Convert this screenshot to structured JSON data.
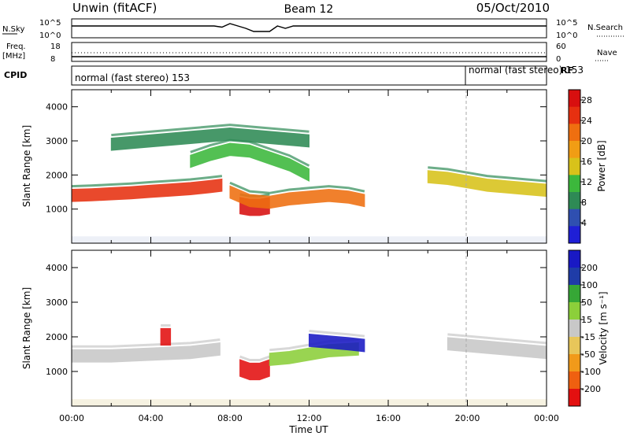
{
  "header": {
    "station": "Unwin (fitACF)",
    "beam": "Beam 12",
    "date": "05/Oct/2010"
  },
  "top_panels": {
    "nsky": {
      "label": "N.Sky",
      "ticks": [
        "10^5",
        "10^0"
      ],
      "right_label": "N.Search",
      "right_ticks": [
        "10^5",
        "10^0"
      ]
    },
    "freq": {
      "label_line1": "Freq.",
      "label_line2": "[MHz]",
      "ticks": [
        "18",
        "8"
      ],
      "right_label": "Nave",
      "right_ticks": [
        "60",
        "0"
      ]
    },
    "cpid": {
      "label": "CPID",
      "right_label": "RF",
      "modes": [
        "normal (fast stereo) 153",
        "normal (fast stereo) 153"
      ]
    }
  },
  "colors": {
    "power": [
      "#1f1fd6",
      "#2f4fb0",
      "#2e8a55",
      "#3cb83c",
      "#d8c21a",
      "#f19d14",
      "#ef6f10",
      "#e63010",
      "#d80f0f"
    ],
    "velocity": [
      "#1919c4",
      "#1f3ca8",
      "#36a736",
      "#8ccf3a",
      "#c8c8c8",
      "#e8c65a",
      "#f19a1a",
      "#ef6010",
      "#e31010"
    ],
    "ground": "#c8c8c8"
  },
  "chart_data": [
    {
      "type": "heatmap",
      "name": "power",
      "xlabel": "",
      "ylabel": "Slant Range [km]",
      "xlim": [
        0,
        24
      ],
      "ylim": [
        0,
        4500
      ],
      "yticks": [
        "1000",
        "2000",
        "3000",
        "4000"
      ],
      "colorbar": {
        "label": "Power [dB]",
        "ticks": [
          "4",
          "8",
          "12",
          "16",
          "20",
          "24",
          "28"
        ],
        "range": [
          0,
          30
        ]
      },
      "series": [
        {
          "x": [
            0,
            1,
            2,
            3,
            4,
            5,
            6,
            7,
            7.6
          ],
          "y": [
            1400,
            1420,
            1450,
            1480,
            1520,
            1560,
            1600,
            1660,
            1700
          ],
          "value": 24
        },
        {
          "x": [
            8.5,
            9,
            9.5,
            10
          ],
          "y": [
            1100,
            1050,
            1050,
            1100
          ],
          "value": 28
        },
        {
          "x": [
            8,
            9,
            10,
            11,
            12,
            13,
            14,
            14.8
          ],
          "y": [
            1500,
            1250,
            1200,
            1300,
            1350,
            1400,
            1350,
            1250
          ],
          "value": 20
        },
        {
          "x": [
            6,
            7,
            8,
            9,
            10,
            11,
            12
          ],
          "y": [
            2400,
            2600,
            2750,
            2700,
            2500,
            2300,
            2000
          ],
          "value": 12
        },
        {
          "x": [
            2,
            4,
            6,
            8,
            10,
            12
          ],
          "y": [
            2900,
            3000,
            3100,
            3200,
            3100,
            3000
          ],
          "value": 8
        },
        {
          "x": [
            18,
            19,
            20,
            21,
            22,
            23,
            24
          ],
          "y": [
            1950,
            1900,
            1800,
            1700,
            1650,
            1600,
            1550
          ],
          "value": 14
        }
      ]
    },
    {
      "type": "heatmap",
      "name": "velocity",
      "xlabel": "Time UT",
      "ylabel": "Slant Range [km]",
      "xlim": [
        0,
        24
      ],
      "ylim": [
        0,
        4500
      ],
      "xticks": [
        "00:00",
        "04:00",
        "08:00",
        "12:00",
        "16:00",
        "20:00",
        "00:00"
      ],
      "yticks": [
        "1000",
        "2000",
        "3000",
        "4000"
      ],
      "colorbar": {
        "label": "Velocity [m s⁻¹]",
        "ticks": [
          "200",
          "100",
          "50",
          "15",
          "-15",
          "-50",
          "-100",
          "-200"
        ],
        "range": [
          -250,
          250
        ]
      },
      "series": [
        {
          "x": [
            0,
            2,
            4,
            6,
            7.5
          ],
          "y": [
            1450,
            1450,
            1500,
            1550,
            1650
          ],
          "value": 0
        },
        {
          "x": [
            4.5,
            5
          ],
          "y": [
            2000,
            2000
          ],
          "value": -200
        },
        {
          "x": [
            8.5,
            9,
            9.5,
            10
          ],
          "y": [
            1100,
            1000,
            1000,
            1100
          ],
          "value": -200
        },
        {
          "x": [
            10,
            11,
            12,
            13,
            14.5
          ],
          "y": [
            1350,
            1400,
            1500,
            1600,
            1650
          ],
          "value": 40
        },
        {
          "x": [
            12,
            13,
            14,
            14.8
          ],
          "y": [
            1900,
            1850,
            1800,
            1750
          ],
          "value": 200
        },
        {
          "x": [
            19,
            21,
            23,
            24
          ],
          "y": [
            1800,
            1700,
            1600,
            1550
          ],
          "value": 0
        }
      ]
    }
  ]
}
